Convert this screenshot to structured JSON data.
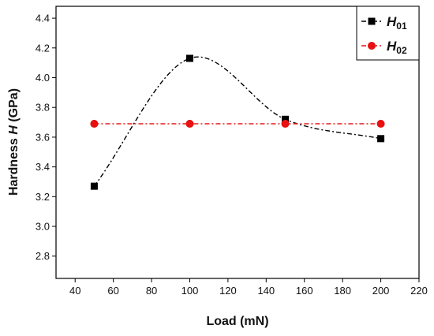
{
  "chart_data": {
    "type": "line",
    "xlabel": "Load (mN)",
    "ylabel_prefix": "Hardness ",
    "ylabel_symbol": "H",
    "ylabel_suffix": " (GPa)",
    "xlim": [
      30,
      220
    ],
    "ylim": [
      2.65,
      4.48
    ],
    "xticks": [
      40,
      60,
      80,
      100,
      120,
      140,
      160,
      180,
      200,
      220
    ],
    "yticks": [
      2.8,
      3.0,
      3.2,
      3.4,
      3.6,
      3.8,
      4.0,
      4.2,
      4.4
    ],
    "x": [
      50,
      100,
      150,
      200
    ],
    "series": [
      {
        "name_main": "H",
        "name_sub": "01",
        "values": [
          3.27,
          4.13,
          3.72,
          3.59
        ],
        "color": "#000000",
        "marker": "square",
        "line_style": "dash-dot",
        "smoothed": true
      },
      {
        "name_main": "H",
        "name_sub": "02",
        "values": [
          3.69,
          3.69,
          3.69,
          3.69
        ],
        "color": "#e81010",
        "marker": "circle",
        "line_style": "dash-dot",
        "smoothed": false
      }
    ],
    "legend_position": "top-right",
    "grid": false
  }
}
